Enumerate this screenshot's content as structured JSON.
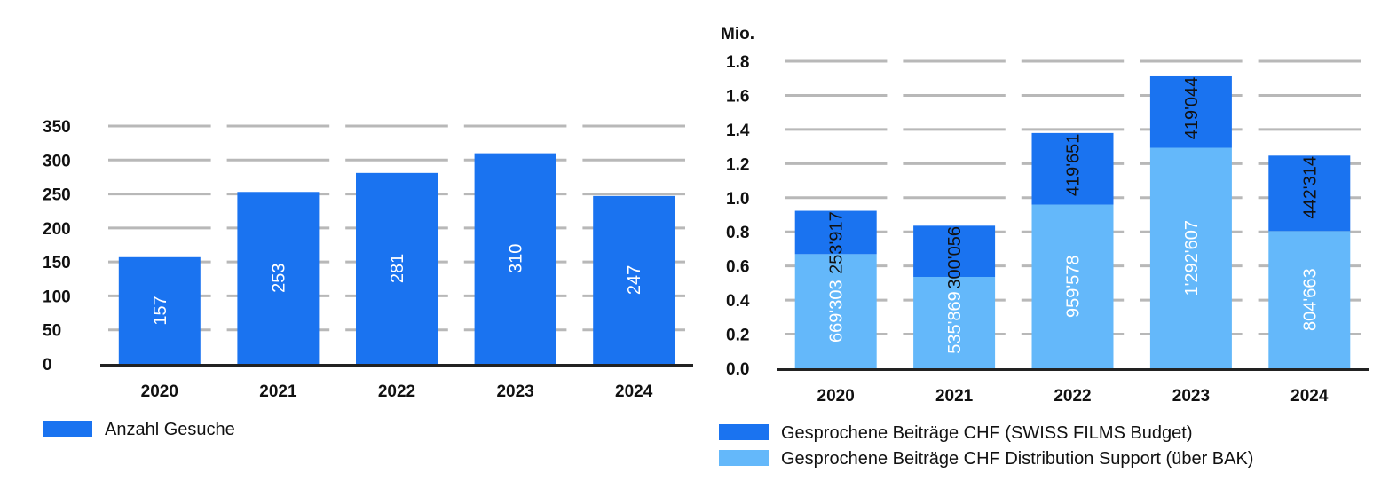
{
  "chart_data": [
    {
      "type": "bar",
      "categories": [
        "2020",
        "2021",
        "2022",
        "2023",
        "2024"
      ],
      "series": [
        {
          "name": "Anzahl Gesuche",
          "values": [
            157,
            253,
            281,
            310,
            247
          ],
          "labels": [
            "157",
            "253",
            "281",
            "310",
            "247"
          ]
        }
      ],
      "yticks": [
        "0",
        "50",
        "100",
        "150",
        "200",
        "250",
        "300",
        "350"
      ],
      "ylim": [
        0,
        350
      ],
      "grid": true,
      "legend_position": "bottom-left",
      "colors": {
        "bar": "#1a73f0",
        "grid": "#b8b8b8",
        "axis": "#222222"
      }
    },
    {
      "type": "bar",
      "stacked": true,
      "unit_label": "Mio.",
      "categories": [
        "2020",
        "2021",
        "2022",
        "2023",
        "2024"
      ],
      "series": [
        {
          "name": "Gesprochene Beiträge CHF Distribution Support (über BAK)",
          "values": [
            0.669303,
            0.535869,
            0.959578,
            1.292607,
            0.804663
          ],
          "labels": [
            "669'303",
            "535'869",
            "959'578",
            "1'292'607",
            "804'663"
          ],
          "color": "#64b8fa"
        },
        {
          "name": "Gesprochene Beiträge CHF (SWISS FILMS Budget)",
          "values": [
            0.253917,
            0.300056,
            0.419651,
            0.419044,
            0.442314
          ],
          "labels": [
            "253'917",
            "300'056",
            "419'651",
            "419'044",
            "442'314"
          ],
          "color": "#1a73f0"
        }
      ],
      "yticks": [
        "0.0",
        "0.2",
        "0.4",
        "0.6",
        "0.8",
        "1.0",
        "1.2",
        "1.4",
        "1.6",
        "1.8"
      ],
      "ylim": [
        0,
        1.8
      ],
      "grid": true,
      "legend_position": "bottom-left",
      "colors": {
        "grid": "#b8b8b8",
        "axis": "#222222"
      }
    }
  ]
}
